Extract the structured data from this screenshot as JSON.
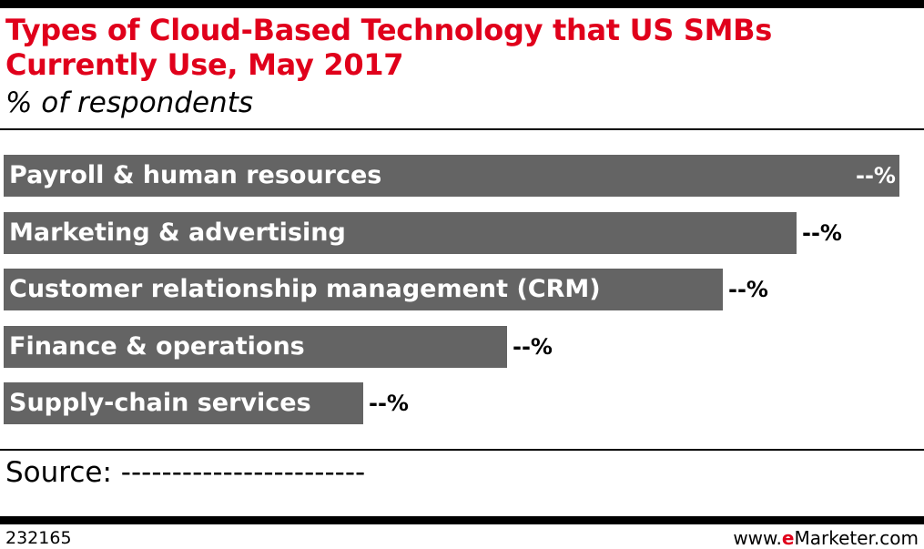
{
  "header": {
    "title": "Types of Cloud-Based Technology that US SMBs Currently Use, May 2017",
    "subtitle": "% of respondents"
  },
  "chart_data": {
    "type": "bar",
    "orientation": "horizontal",
    "title": "Types of Cloud-Based Technology that US SMBs Currently Use, May 2017",
    "subtitle": "% of respondents",
    "categories": [
      "Payroll & human resources",
      "Marketing & advertising",
      "Customer relationship management (CRM)",
      "Finance & operations",
      "Supply-chain services"
    ],
    "values": [
      100,
      88.5,
      80.3,
      56.2,
      40.1
    ],
    "value_labels": [
      "--%",
      "--%",
      "--%",
      "--%",
      "--%"
    ],
    "xlabel": "",
    "ylabel": "",
    "xlim": [
      0,
      100
    ],
    "grid": false,
    "legend": "none",
    "bar_color": "#646464"
  },
  "footer": {
    "source": "Source: ------------------------",
    "chart_id": "232165",
    "brand_prefix": "www.",
    "brand_accent": "e",
    "brand_suffix": "Marketer.com"
  },
  "colors": {
    "title": "#e0001b",
    "bar": "#646464",
    "bar_label": "#ffffff",
    "brand_accent": "#e0001b"
  }
}
